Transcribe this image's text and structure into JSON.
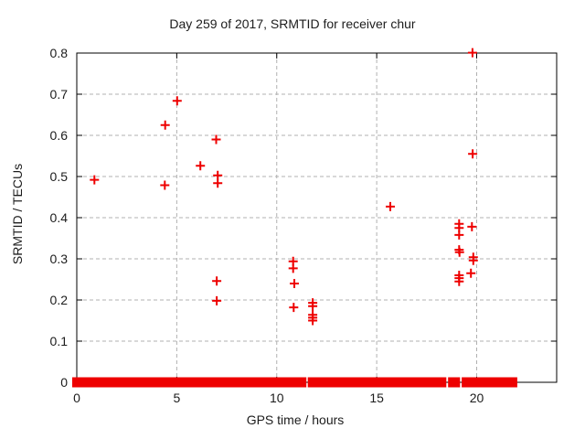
{
  "chart_data": {
    "type": "scatter",
    "title": "Day 259 of 2017, SRMTID for receiver chur",
    "xlabel": "GPS time / hours",
    "ylabel": "SRMTID / TECUs",
    "xlim": [
      0,
      24
    ],
    "ylim": [
      0,
      0.8
    ],
    "xticks": [
      0,
      5,
      10,
      15,
      20
    ],
    "yticks": [
      0,
      0.1,
      0.2,
      0.3,
      0.4,
      0.5,
      0.6,
      0.7,
      0.8
    ],
    "grid": true,
    "legend_position": "none",
    "marker": "plus",
    "marker_color": "#ee0000",
    "series": [
      {
        "name": "SRMTID",
        "points": [
          [
            0.88,
            0.492
          ],
          [
            4.4,
            0.479
          ],
          [
            4.42,
            0.625
          ],
          [
            5.02,
            0.684
          ],
          [
            6.18,
            0.526
          ],
          [
            6.97,
            0.59
          ],
          [
            7.0,
            0.246
          ],
          [
            7.0,
            0.198
          ],
          [
            7.05,
            0.503
          ],
          [
            7.05,
            0.484
          ],
          [
            10.82,
            0.294
          ],
          [
            10.82,
            0.277
          ],
          [
            10.85,
            0.182
          ],
          [
            10.88,
            0.24
          ],
          [
            11.8,
            0.193
          ],
          [
            11.8,
            0.185
          ],
          [
            11.8,
            0.164
          ],
          [
            11.8,
            0.157
          ],
          [
            11.8,
            0.15
          ],
          [
            15.68,
            0.427
          ],
          [
            19.12,
            0.385
          ],
          [
            19.12,
            0.375
          ],
          [
            19.12,
            0.358
          ],
          [
            19.12,
            0.322
          ],
          [
            19.14,
            0.316
          ],
          [
            19.12,
            0.26
          ],
          [
            19.12,
            0.253
          ],
          [
            19.12,
            0.245
          ],
          [
            19.71,
            0.265
          ],
          [
            19.76,
            0.378
          ],
          [
            19.79,
            0.801
          ],
          [
            19.8,
            0.555
          ],
          [
            19.83,
            0.304
          ],
          [
            19.83,
            0.296
          ]
        ]
      }
    ],
    "zero_band": {
      "description": "dense run of plus markers at SRMTID = 0",
      "value": 0,
      "segments_hours": [
        [
          -0.23,
          11.48
        ],
        [
          11.55,
          18.48
        ],
        [
          18.57,
          19.17
        ],
        [
          19.25,
          22.03
        ]
      ]
    }
  }
}
